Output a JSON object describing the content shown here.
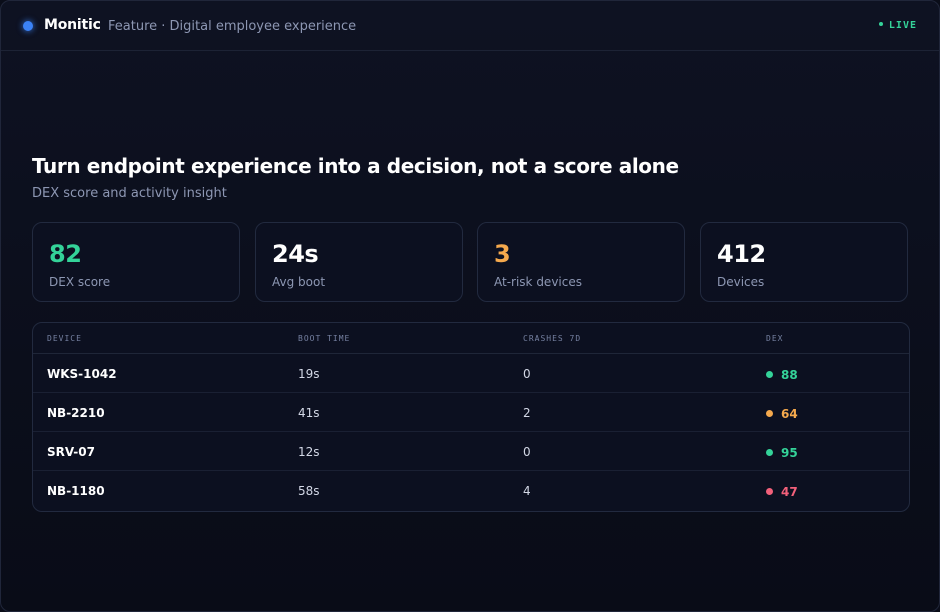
{
  "header": {
    "brand": "Monitic",
    "subtitle": "Feature · Digital employee experience",
    "status": "LIVE"
  },
  "hero": {
    "title": "Turn endpoint experience into a decision, not a score alone",
    "subtitle": "DEX score and activity insight"
  },
  "stats": [
    {
      "value": "82",
      "label": "DEX score",
      "color": "#34d399"
    },
    {
      "value": "24s",
      "label": "Avg boot",
      "color": "#ffffff"
    },
    {
      "value": "3",
      "label": "At-risk devices",
      "color": "#f5a94d"
    },
    {
      "value": "412",
      "label": "Devices",
      "color": "#ffffff"
    }
  ],
  "table": {
    "columns": [
      "DEVICE",
      "BOOT TIME",
      "CRASHES 7D",
      "DEX"
    ],
    "rows": [
      {
        "device": "WKS-1042",
        "boot": "19s",
        "crashes": "0",
        "dex": "88",
        "status_color": "#34d399"
      },
      {
        "device": "NB-2210",
        "boot": "41s",
        "crashes": "2",
        "dex": "64",
        "status_color": "#f5a94d"
      },
      {
        "device": "SRV-07",
        "boot": "12s",
        "crashes": "0",
        "dex": "95",
        "status_color": "#34d399"
      },
      {
        "device": "NB-1180",
        "boot": "58s",
        "crashes": "4",
        "dex": "47",
        "status_color": "#f2607a"
      }
    ]
  }
}
